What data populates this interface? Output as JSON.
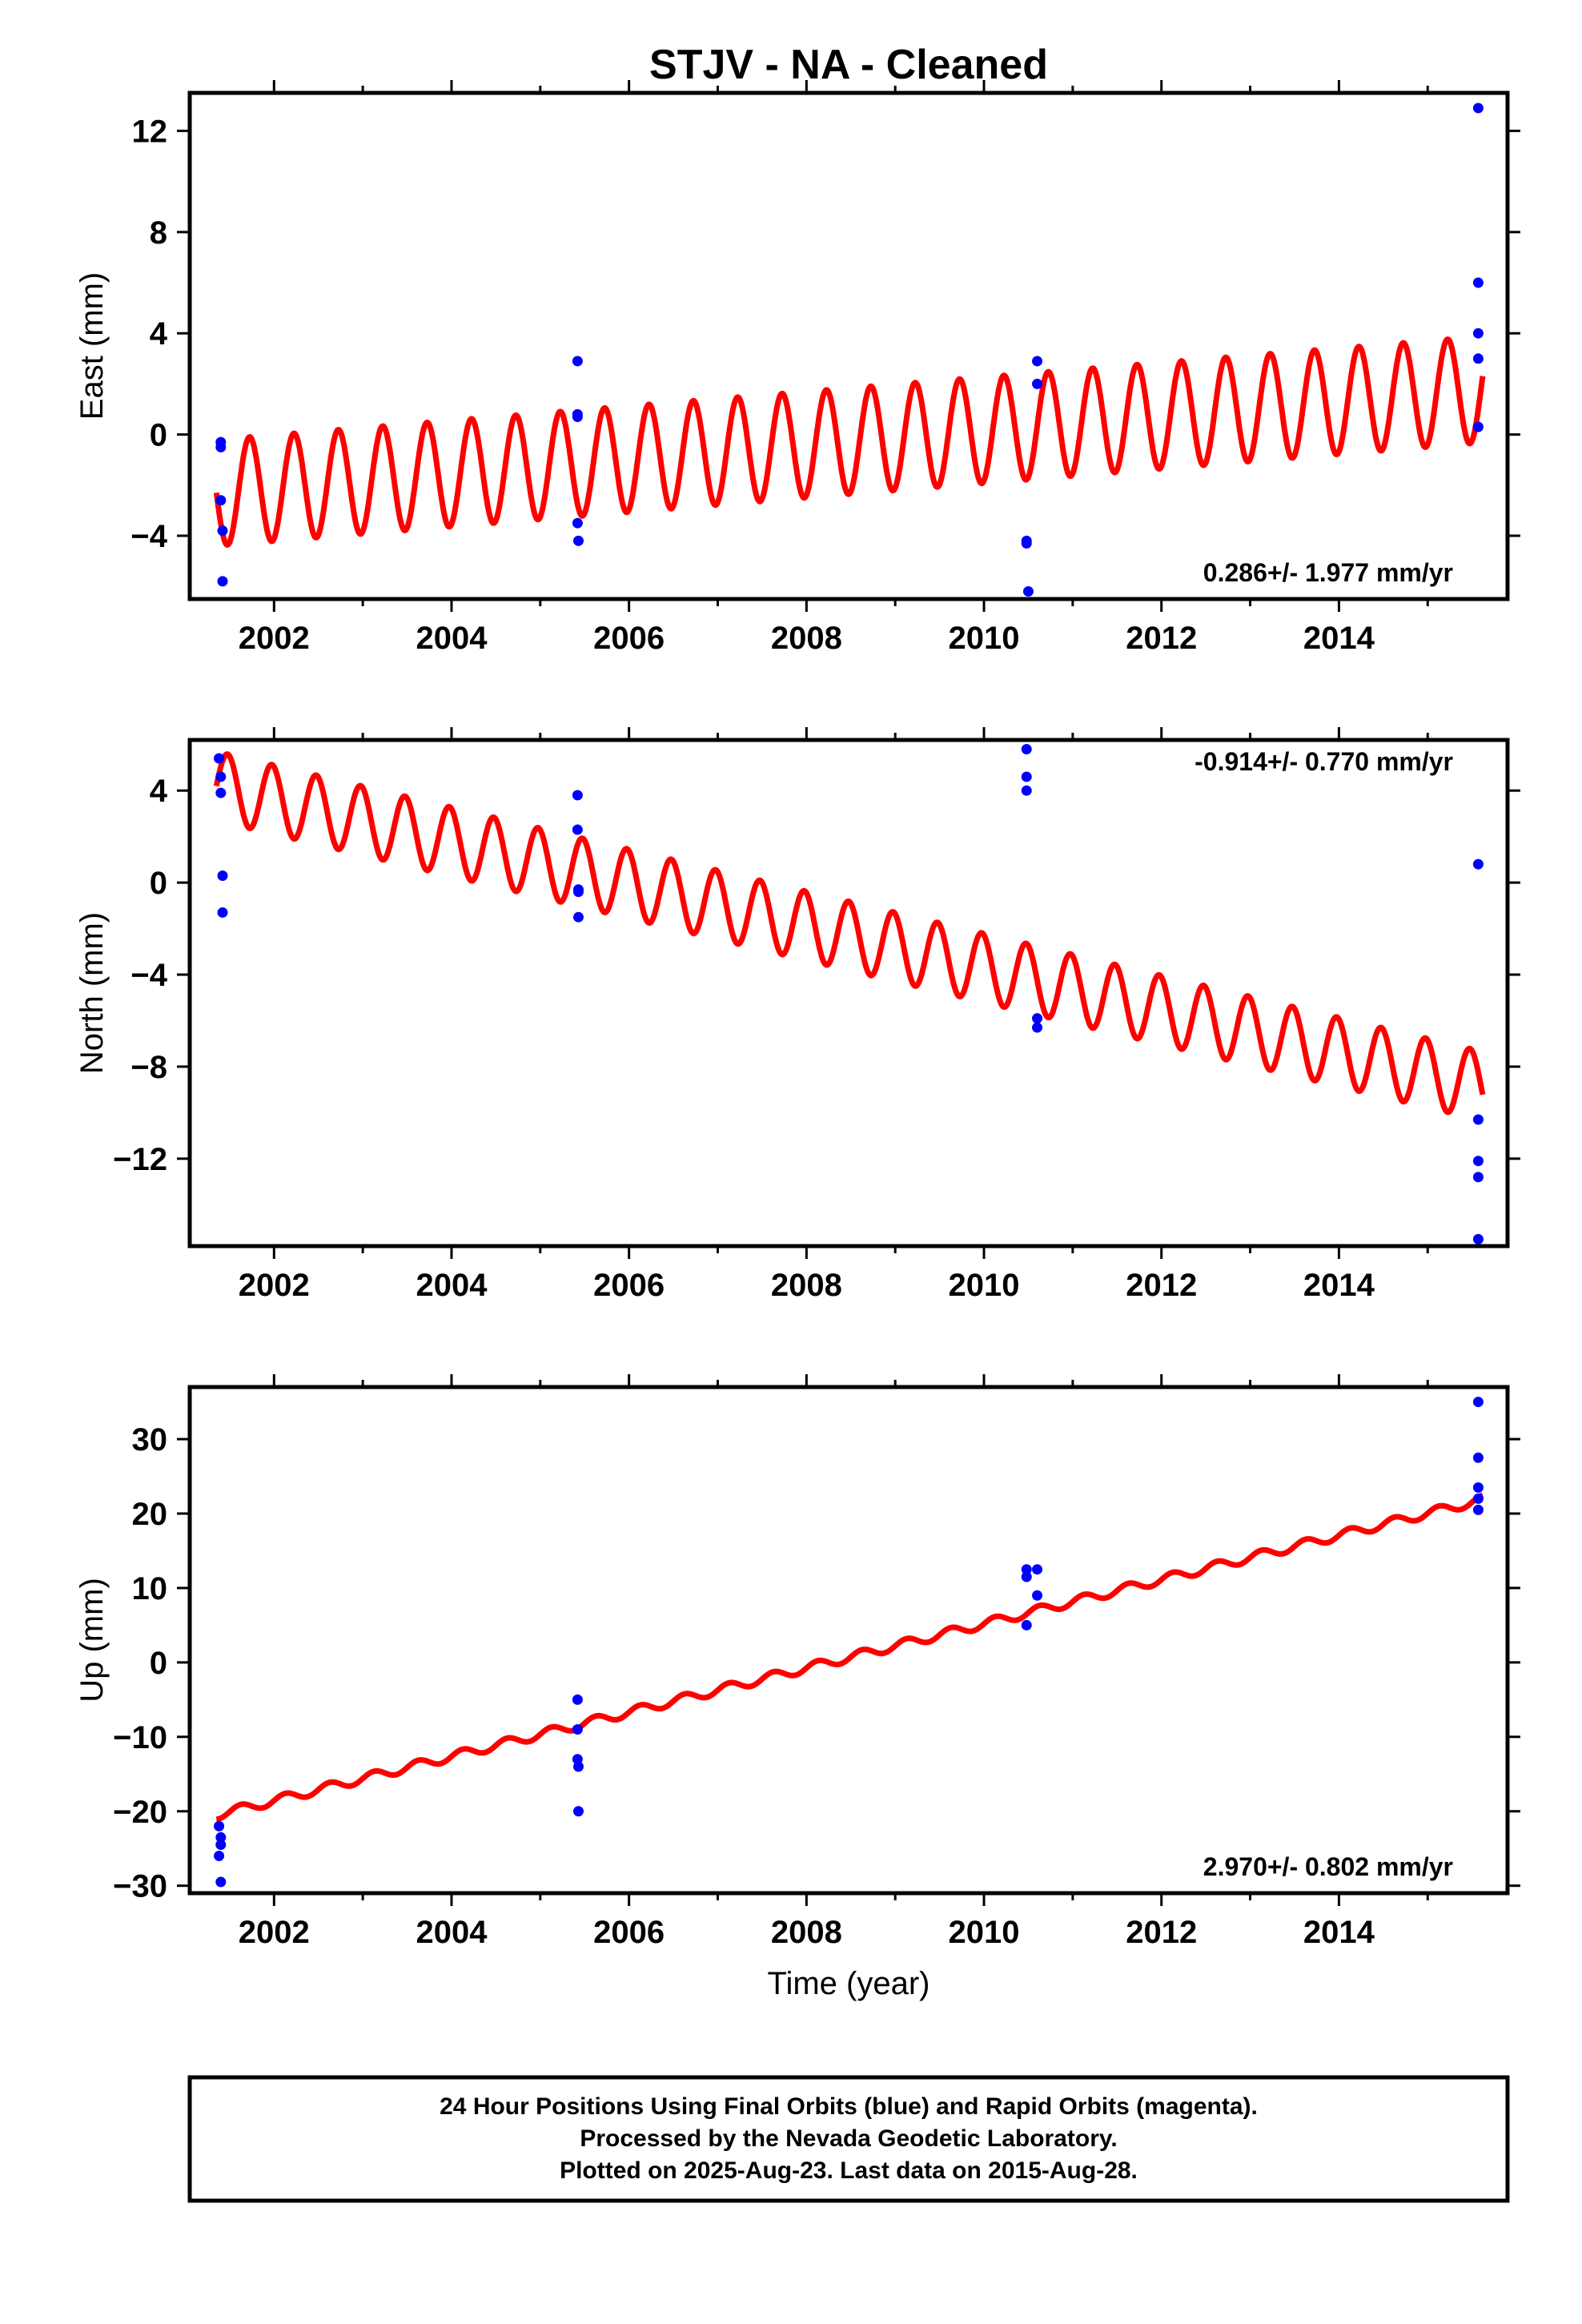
{
  "title": "STJV  - NA - Cleaned",
  "xlabel": "Time (year)",
  "colors": {
    "model": "#ff0000",
    "final": "#0000ff",
    "frame": "#000000"
  },
  "footer": {
    "line1": "24 Hour Positions Using Final Orbits (blue) and Rapid Orbits (magenta).",
    "line2": "Processed by the Nevada Geodetic Laboratory.",
    "line3": "Plotted on 2025-Aug-23. Last data on 2015-Aug-28."
  },
  "chart_data": [
    {
      "type": "scatter",
      "component": "East",
      "ylabel": "East (mm)",
      "xlim": [
        2001.05,
        2015.9
      ],
      "ylim": [
        -6.5,
        13.5
      ],
      "xticks": [
        2002,
        2004,
        2006,
        2008,
        2010,
        2012,
        2014
      ],
      "yticks": [
        -4,
        0,
        4,
        8,
        12
      ],
      "rate_label": "0.286+/- 1.977 mm/yr",
      "rate_position": "bottom-right",
      "model": {
        "x_start": 2001.35,
        "x_end": 2015.62,
        "y_start": -2.3,
        "slope": 0.286,
        "amplitude": 2.1,
        "period": 0.5,
        "phase": 2001.6
      },
      "points": [
        [
          2001.4,
          -0.3
        ],
        [
          2001.4,
          -0.5
        ],
        [
          2001.4,
          -2.6
        ],
        [
          2001.42,
          -3.8
        ],
        [
          2001.42,
          -5.8
        ],
        [
          2005.42,
          2.9
        ],
        [
          2005.42,
          0.8
        ],
        [
          2005.42,
          0.7
        ],
        [
          2005.42,
          -3.5
        ],
        [
          2005.43,
          -4.2
        ],
        [
          2010.48,
          -4.2
        ],
        [
          2010.48,
          -4.3
        ],
        [
          2010.5,
          -6.2
        ],
        [
          2010.6,
          2.9
        ],
        [
          2010.6,
          2.0
        ],
        [
          2015.57,
          12.9
        ],
        [
          2015.57,
          6.0
        ],
        [
          2015.57,
          4.0
        ],
        [
          2015.57,
          3.0
        ],
        [
          2015.57,
          0.3
        ]
      ]
    },
    {
      "type": "scatter",
      "component": "North",
      "ylabel": "North (mm)",
      "xlim": [
        2001.05,
        2015.9
      ],
      "ylim": [
        -15.8,
        6.2
      ],
      "xticks": [
        2002,
        2004,
        2006,
        2008,
        2010,
        2012,
        2014
      ],
      "yticks": [
        -12,
        -8,
        -4,
        0,
        4
      ],
      "rate_label": "-0.914+/- 0.770 mm/yr",
      "rate_position": "top-right",
      "model": {
        "x_start": 2001.35,
        "x_end": 2015.62,
        "y_start": 4.2,
        "slope": -0.914,
        "amplitude": 1.5,
        "period": 0.5,
        "phase": 2001.35
      },
      "points": [
        [
          2001.38,
          5.4
        ],
        [
          2001.4,
          4.6
        ],
        [
          2001.4,
          3.9
        ],
        [
          2001.42,
          0.3
        ],
        [
          2001.42,
          -1.3
        ],
        [
          2005.42,
          3.8
        ],
        [
          2005.42,
          2.3
        ],
        [
          2005.43,
          -0.3
        ],
        [
          2005.43,
          -0.4
        ],
        [
          2005.43,
          -1.5
        ],
        [
          2010.48,
          5.8
        ],
        [
          2010.48,
          4.6
        ],
        [
          2010.48,
          4.0
        ],
        [
          2010.6,
          -5.9
        ],
        [
          2010.6,
          -6.3
        ],
        [
          2015.57,
          0.8
        ],
        [
          2015.57,
          -10.3
        ],
        [
          2015.57,
          -12.1
        ],
        [
          2015.57,
          -12.8
        ],
        [
          2015.57,
          -15.5
        ]
      ]
    },
    {
      "type": "scatter",
      "component": "Up",
      "ylabel": "Up (mm)",
      "xlim": [
        2001.05,
        2015.9
      ],
      "ylim": [
        -31,
        37
      ],
      "xticks": [
        2002,
        2004,
        2006,
        2008,
        2010,
        2012,
        2014
      ],
      "yticks": [
        -30,
        -20,
        -10,
        0,
        10,
        20,
        30
      ],
      "rate_label": "2.970+/- 0.802 mm/yr",
      "rate_position": "bottom-right",
      "model": {
        "x_start": 2001.35,
        "x_end": 2015.62,
        "y_start": -20.5,
        "slope": 2.97,
        "amplitude": 0.6,
        "period": 0.5,
        "phase": 2001.5
      },
      "points": [
        [
          2001.38,
          -22.0
        ],
        [
          2001.4,
          -23.5
        ],
        [
          2001.4,
          -24.5
        ],
        [
          2001.38,
          -26.0
        ],
        [
          2001.4,
          -29.5
        ],
        [
          2005.42,
          -5.0
        ],
        [
          2005.42,
          -9.0
        ],
        [
          2005.42,
          -13.0
        ],
        [
          2005.43,
          -14.0
        ],
        [
          2005.43,
          -20.0
        ],
        [
          2010.48,
          12.5
        ],
        [
          2010.48,
          11.5
        ],
        [
          2010.48,
          5.0
        ],
        [
          2010.6,
          12.5
        ],
        [
          2010.6,
          9.0
        ],
        [
          2015.57,
          35.0
        ],
        [
          2015.57,
          27.5
        ],
        [
          2015.57,
          23.5
        ],
        [
          2015.57,
          22.0
        ],
        [
          2015.57,
          20.5
        ]
      ]
    }
  ]
}
